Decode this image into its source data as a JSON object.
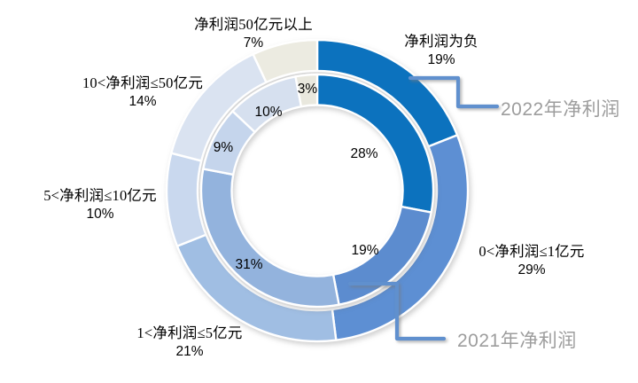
{
  "chart_data": {
    "type": "doughnut",
    "title": "",
    "categories": [
      "净利润为负",
      "0<净利润≤1亿元",
      "1<净利润≤5亿元",
      "5<净利润≤10亿元",
      "10<净利润≤50亿元",
      "净利润50亿元以上"
    ],
    "series": [
      {
        "name": "2022年净利润",
        "ring": "outer",
        "unit": "%",
        "values": [
          19,
          29,
          21,
          10,
          14,
          7
        ]
      },
      {
        "name": "2021年净利润",
        "ring": "inner",
        "unit": "%",
        "values": [
          28,
          19,
          31,
          9,
          10,
          3
        ]
      }
    ],
    "start_angle_deg": 0,
    "direction": "clockwise",
    "legend_position": "callouts",
    "colors_outer": [
      "#0C72BE",
      "#5D8FD3",
      "#A0BEE3",
      "#C9D8EE",
      "#DAE3F1",
      "#ECEBE1"
    ],
    "colors_inner": [
      "#0C72BE",
      "#5C8CCF",
      "#93B3DD",
      "#C5D5EC",
      "#D6E0EF",
      "#E9E8DE"
    ],
    "callout_line_color": "#6090CE",
    "callout_text_color": "#9D9D9D",
    "slice_border_color": "#FFFFFF",
    "background_color": "#FFFFFF"
  }
}
